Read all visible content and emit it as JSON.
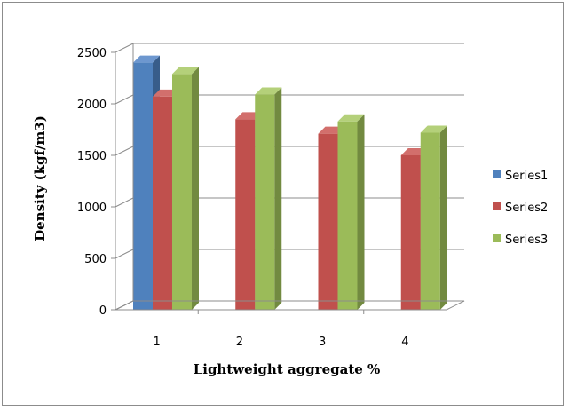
{
  "chart_data": {
    "type": "bar",
    "categories": [
      "1",
      "2",
      "3",
      "4"
    ],
    "series": [
      {
        "name": "Series1",
        "values": [
          2400,
          null,
          null,
          null
        ],
        "color": "#4F81BD",
        "side": "#385D8A",
        "top": "#6D97CF"
      },
      {
        "name": "Series2",
        "values": [
          2070,
          1850,
          1710,
          1500
        ],
        "color": "#C0504D",
        "side": "#8E3A38",
        "top": "#D26F6C"
      },
      {
        "name": "Series3",
        "values": [
          2290,
          2090,
          1830,
          1720
        ],
        "color": "#9BBB59",
        "side": "#728A40",
        "top": "#B4D07A"
      }
    ],
    "y_ticks": [
      "0",
      "500",
      "1000",
      "1500",
      "2000",
      "2500"
    ],
    "ylim": [
      0,
      2500
    ],
    "xlabel": "Lightweight aggregate %",
    "ylabel": "Density (kgf/m3)",
    "title": "",
    "legend_position": "right",
    "grid": true,
    "style": "3d-clustered-column"
  }
}
